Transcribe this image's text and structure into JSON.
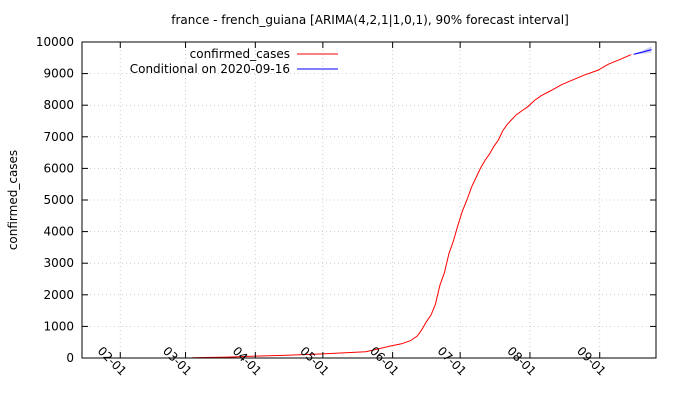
{
  "chart_data": {
    "type": "line",
    "title": "france - french_guiana [ARIMA(4,2,1|1,0,1), 90% forecast interval]",
    "ylabel": "confirmed_cases",
    "xlabel": "",
    "x_ticks": [
      "02-01",
      "03-01",
      "04-01",
      "05-01",
      "06-01",
      "07-01",
      "08-01",
      "09-01"
    ],
    "y_ticks": [
      0,
      1000,
      2000,
      3000,
      4000,
      5000,
      6000,
      7000,
      8000,
      9000,
      10000
    ],
    "ylim": [
      0,
      10000
    ],
    "xlim": [
      "2020-01-15",
      "2020-09-26"
    ],
    "grid": true,
    "legend_position": "top-left",
    "series": [
      {
        "name": "confirmed_cases",
        "color": "#ff0000",
        "x": [
          "2020-03-04",
          "2020-03-10",
          "2020-03-20",
          "2020-04-01",
          "2020-04-15",
          "2020-05-01",
          "2020-05-10",
          "2020-05-20",
          "2020-05-25",
          "2020-05-31",
          "2020-06-05",
          "2020-06-09",
          "2020-06-12",
          "2020-06-14",
          "2020-06-16",
          "2020-06-18",
          "2020-06-20",
          "2020-06-22",
          "2020-06-24",
          "2020-06-26",
          "2020-06-28",
          "2020-06-30",
          "2020-07-02",
          "2020-07-04",
          "2020-07-06",
          "2020-07-08",
          "2020-07-10",
          "2020-07-12",
          "2020-07-14",
          "2020-07-16",
          "2020-07-18",
          "2020-07-20",
          "2020-07-22",
          "2020-07-24",
          "2020-07-26",
          "2020-07-28",
          "2020-07-31",
          "2020-08-03",
          "2020-08-06",
          "2020-08-10",
          "2020-08-15",
          "2020-08-20",
          "2020-08-25",
          "2020-08-31",
          "2020-09-05",
          "2020-09-10",
          "2020-09-15"
        ],
        "y": [
          5,
          15,
          30,
          60,
          90,
          130,
          160,
          200,
          280,
          380,
          450,
          550,
          700,
          900,
          1150,
          1350,
          1700,
          2300,
          2700,
          3300,
          3700,
          4200,
          4650,
          5000,
          5400,
          5700,
          6000,
          6250,
          6450,
          6700,
          6900,
          7200,
          7400,
          7550,
          7700,
          7800,
          7950,
          8150,
          8300,
          8450,
          8650,
          8800,
          8950,
          9100,
          9300,
          9450,
          9600
        ]
      },
      {
        "name": "Conditional on 2020-09-16",
        "color": "#0000ff",
        "x": [
          "2020-09-16",
          "2020-09-20",
          "2020-09-24"
        ],
        "y": [
          9610,
          9680,
          9760
        ],
        "interval_upper": [
          9620,
          9730,
          9860
        ],
        "interval_lower": [
          9600,
          9630,
          9660
        ]
      }
    ]
  }
}
